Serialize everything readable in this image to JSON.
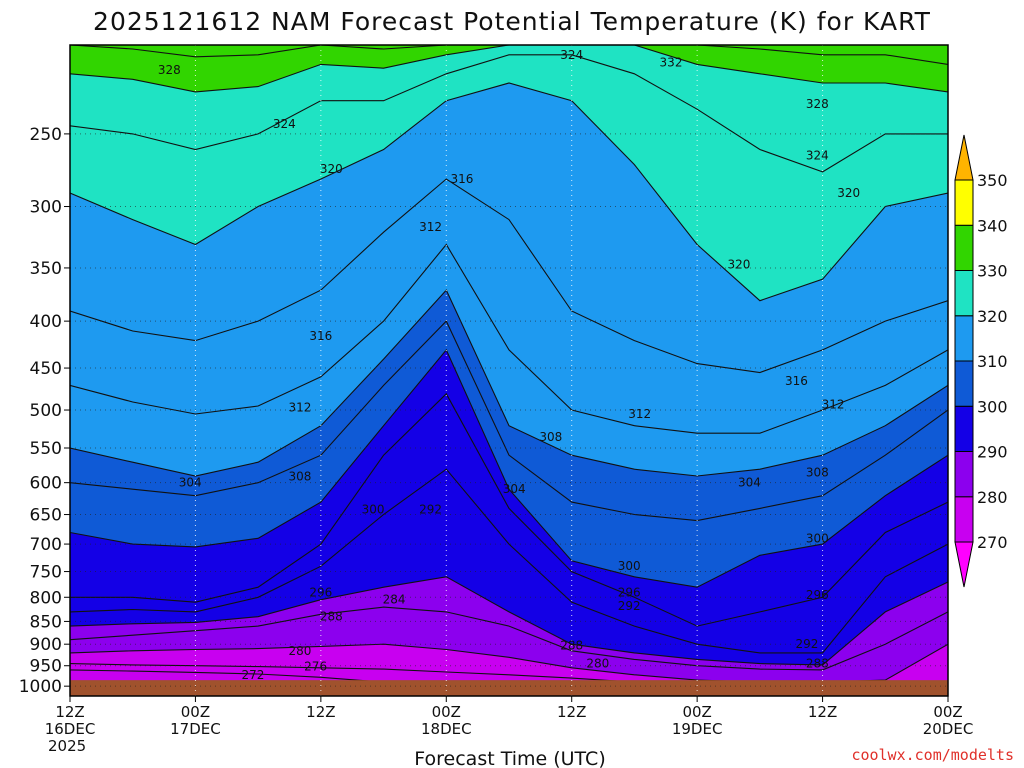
{
  "chart_data": {
    "type": "heatmap",
    "title": "2025121612 NAM Forecast Potential Temperature (K) for KART",
    "xlabel": "Forecast Time (UTC)",
    "ylabel": "",
    "credit": "coolwx.com/modelts",
    "y_scale": "log-pressure",
    "y_axis": {
      "unit": "hPa",
      "range": [
        1025,
        200
      ],
      "ticks": [
        250,
        300,
        350,
        400,
        450,
        500,
        550,
        600,
        650,
        700,
        750,
        800,
        850,
        900,
        950,
        1000
      ]
    },
    "x_axis": {
      "range": [
        "2025-12-16 12Z",
        "2025-12-20 00Z"
      ],
      "ticks": [
        {
          "hour": 0,
          "line1": "12Z",
          "line2": "16DEC",
          "line3": "2025"
        },
        {
          "hour": 12,
          "line1": "00Z",
          "line2": "17DEC",
          "line3": ""
        },
        {
          "hour": 24,
          "line1": "12Z",
          "line2": "",
          "line3": ""
        },
        {
          "hour": 36,
          "line1": "00Z",
          "line2": "18DEC",
          "line3": ""
        },
        {
          "hour": 48,
          "line1": "12Z",
          "line2": "",
          "line3": ""
        },
        {
          "hour": 60,
          "line1": "00Z",
          "line2": "19DEC",
          "line3": ""
        },
        {
          "hour": 72,
          "line1": "12Z",
          "line2": "",
          "line3": ""
        },
        {
          "hour": 84,
          "line1": "00Z",
          "line2": "20DEC",
          "line3": ""
        }
      ]
    },
    "grid": true,
    "ground_surface_hpa": 985,
    "colorbar": {
      "placement": "right",
      "levels": [
        270,
        280,
        290,
        300,
        310,
        320,
        330,
        340,
        350
      ],
      "colors": [
        "#ff00ff",
        "#c800f0",
        "#8c00ee",
        "#1400e6",
        "#0f5ad6",
        "#1e9af0",
        "#1fe3c3",
        "#31d500",
        "#ffff00",
        "#ffb400"
      ]
    },
    "hours": [
      0,
      6,
      12,
      18,
      24,
      30,
      36,
      42,
      48,
      54,
      60,
      66,
      72,
      78,
      84
    ],
    "contour_interval": 2,
    "contours": [
      {
        "level": 272,
        "p": [
          960,
          963,
          966,
          970,
          978,
          990,
          995,
          995,
          995,
          995,
          995,
          995,
          995,
          995,
          995
        ]
      },
      {
        "level": 276,
        "p": [
          945,
          948,
          950,
          952,
          955,
          958,
          965,
          972,
          980,
          990,
          995,
          995,
          995,
          995,
          995
        ]
      },
      {
        "level": 280,
        "p": [
          920,
          915,
          912,
          910,
          905,
          900,
          912,
          930,
          955,
          972,
          985,
          990,
          990,
          985,
          900
        ]
      },
      {
        "level": 284,
        "p": [
          890,
          880,
          870,
          860,
          835,
          820,
          830,
          860,
          915,
          935,
          950,
          958,
          960,
          900,
          830
        ]
      },
      {
        "level": 288,
        "p": [
          860,
          855,
          852,
          840,
          805,
          780,
          760,
          830,
          900,
          920,
          935,
          945,
          948,
          830,
          770
        ]
      },
      {
        "level": 292,
        "p": [
          830,
          825,
          830,
          800,
          740,
          650,
          580,
          700,
          810,
          860,
          900,
          920,
          920,
          760,
          700
        ]
      },
      {
        "level": 296,
        "p": [
          800,
          800,
          810,
          780,
          700,
          560,
          480,
          640,
          750,
          800,
          860,
          830,
          800,
          680,
          630
        ]
      },
      {
        "level": 300,
        "p": [
          680,
          700,
          705,
          690,
          630,
          520,
          430,
          610,
          730,
          760,
          780,
          720,
          700,
          620,
          560
        ]
      },
      {
        "level": 304,
        "p": [
          600,
          610,
          620,
          600,
          560,
          470,
          400,
          560,
          630,
          650,
          660,
          640,
          620,
          560,
          500
        ]
      },
      {
        "level": 308,
        "p": [
          550,
          570,
          590,
          570,
          520,
          440,
          370,
          520,
          560,
          580,
          590,
          580,
          560,
          520,
          470
        ]
      },
      {
        "level": 312,
        "p": [
          470,
          490,
          505,
          495,
          460,
          400,
          330,
          430,
          500,
          520,
          530,
          530,
          500,
          470,
          430
        ]
      },
      {
        "level": 316,
        "p": [
          390,
          410,
          420,
          400,
          370,
          320,
          280,
          310,
          390,
          420,
          445,
          455,
          430,
          400,
          380
        ]
      },
      {
        "level": 320,
        "p": [
          290,
          310,
          330,
          300,
          280,
          260,
          230,
          220,
          230,
          270,
          330,
          380,
          360,
          300,
          290
        ]
      },
      {
        "level": 324,
        "p": [
          245,
          250,
          260,
          250,
          230,
          230,
          215,
          205,
          205,
          215,
          235,
          260,
          275,
          250,
          250
        ]
      },
      {
        "level": 328,
        "p": [
          215,
          218,
          225,
          222,
          210,
          212,
          205,
          200,
          200,
          200,
          210,
          215,
          220,
          220,
          225
        ]
      },
      {
        "level": 332,
        "p": [
          200,
          202,
          206,
          205,
          200,
          202,
          200,
          200,
          200,
          200,
          200,
          202,
          205,
          205,
          210
        ]
      }
    ],
    "contour_labels": [
      {
        "text": "328",
        "hour": 9.5,
        "p": 213
      },
      {
        "text": "324",
        "hour": 20.5,
        "p": 244
      },
      {
        "text": "320",
        "hour": 25,
        "p": 273
      },
      {
        "text": "316",
        "hour": 37.5,
        "p": 280
      },
      {
        "text": "312",
        "hour": 34.5,
        "p": 316
      },
      {
        "text": "324",
        "hour": 48,
        "p": 205
      },
      {
        "text": "332",
        "hour": 57.5,
        "p": 209
      },
      {
        "text": "328",
        "hour": 71.5,
        "p": 232
      },
      {
        "text": "324",
        "hour": 71.5,
        "p": 264
      },
      {
        "text": "320",
        "hour": 74.5,
        "p": 290
      },
      {
        "text": "320",
        "hour": 64,
        "p": 347
      },
      {
        "text": "316",
        "hour": 24,
        "p": 415
      },
      {
        "text": "312",
        "hour": 22,
        "p": 497
      },
      {
        "text": "308",
        "hour": 22,
        "p": 591
      },
      {
        "text": "304",
        "hour": 11.5,
        "p": 600
      },
      {
        "text": "300",
        "hour": 29,
        "p": 642
      },
      {
        "text": "292",
        "hour": 34.5,
        "p": 642
      },
      {
        "text": "308",
        "hour": 46,
        "p": 535
      },
      {
        "text": "304",
        "hour": 42.5,
        "p": 610
      },
      {
        "text": "312",
        "hour": 54.5,
        "p": 505
      },
      {
        "text": "316",
        "hour": 69.5,
        "p": 465
      },
      {
        "text": "312",
        "hour": 73,
        "p": 493
      },
      {
        "text": "308",
        "hour": 71.5,
        "p": 585
      },
      {
        "text": "304",
        "hour": 65,
        "p": 600
      },
      {
        "text": "300",
        "hour": 71.5,
        "p": 690
      },
      {
        "text": "300",
        "hour": 53.5,
        "p": 740
      },
      {
        "text": "296",
        "hour": 53.5,
        "p": 790
      },
      {
        "text": "292",
        "hour": 53.5,
        "p": 818
      },
      {
        "text": "296",
        "hour": 71.5,
        "p": 795
      },
      {
        "text": "292",
        "hour": 70.5,
        "p": 900
      },
      {
        "text": "288",
        "hour": 71.5,
        "p": 945
      },
      {
        "text": "296",
        "hour": 24,
        "p": 790
      },
      {
        "text": "288",
        "hour": 25,
        "p": 840
      },
      {
        "text": "284",
        "hour": 31,
        "p": 805
      },
      {
        "text": "288",
        "hour": 48,
        "p": 903
      },
      {
        "text": "280",
        "hour": 50.5,
        "p": 945
      },
      {
        "text": "280",
        "hour": 22,
        "p": 915
      },
      {
        "text": "276",
        "hour": 23.5,
        "p": 952
      },
      {
        "text": "272",
        "hour": 17.5,
        "p": 972
      }
    ]
  }
}
